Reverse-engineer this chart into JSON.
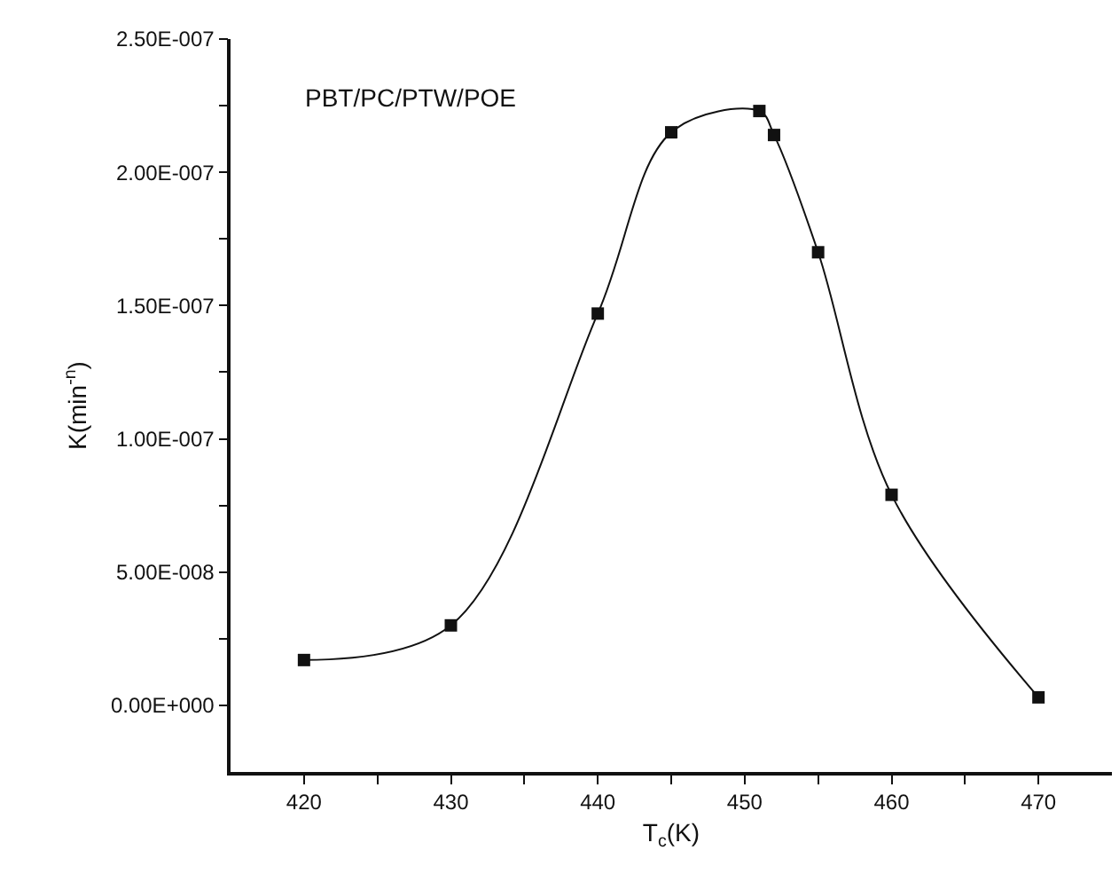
{
  "chart_data": {
    "type": "line",
    "xlabel": "T$_{c}$(K)",
    "ylabel": "K(min$^{-n}$)",
    "annotations": [
      "PBT/PC/PTW/POE"
    ],
    "x": [
      420,
      430,
      440,
      445,
      451,
      452,
      455,
      460,
      470
    ],
    "series": [
      {
        "color": "#111111",
        "values": [
          1.7e-08,
          3e-08,
          1.47e-07,
          2.15e-07,
          2.23e-07,
          2.14e-07,
          1.7e-07,
          7.9e-08,
          3e-09
        ]
      }
    ],
    "xlim": [
      415,
      475
    ],
    "xticks": [
      420,
      {
        "value": 425,
        "label": null
      },
      430,
      {
        "value": 435,
        "label": null
      },
      440,
      {
        "value": 445,
        "label": null
      },
      450,
      {
        "value": 455,
        "label": null
      },
      460,
      {
        "value": 465,
        "label": null
      },
      470
    ],
    "ylim": [
      -2.5e-08,
      2.5e-07
    ],
    "yticks": [
      {
        "value": 0,
        "label": "0.00E+000"
      },
      {
        "value": 2.5e-08,
        "label": null
      },
      {
        "value": 5e-08,
        "label": "5.00E-008"
      },
      {
        "value": 7.5e-08,
        "label": null
      },
      {
        "value": 1e-07,
        "label": "1.00E-007"
      },
      {
        "value": 1.25e-07,
        "label": null
      },
      {
        "value": 1.5e-07,
        "label": "1.50E-007"
      },
      {
        "value": 1.75e-07,
        "label": null
      },
      {
        "value": 2e-07,
        "label": "2.00E-007"
      },
      {
        "value": 2.25e-07,
        "label": null
      },
      {
        "value": 2.5e-07,
        "label": "2.50E-007"
      }
    ],
    "grid": false,
    "marker": "square",
    "line_style": "solid"
  }
}
